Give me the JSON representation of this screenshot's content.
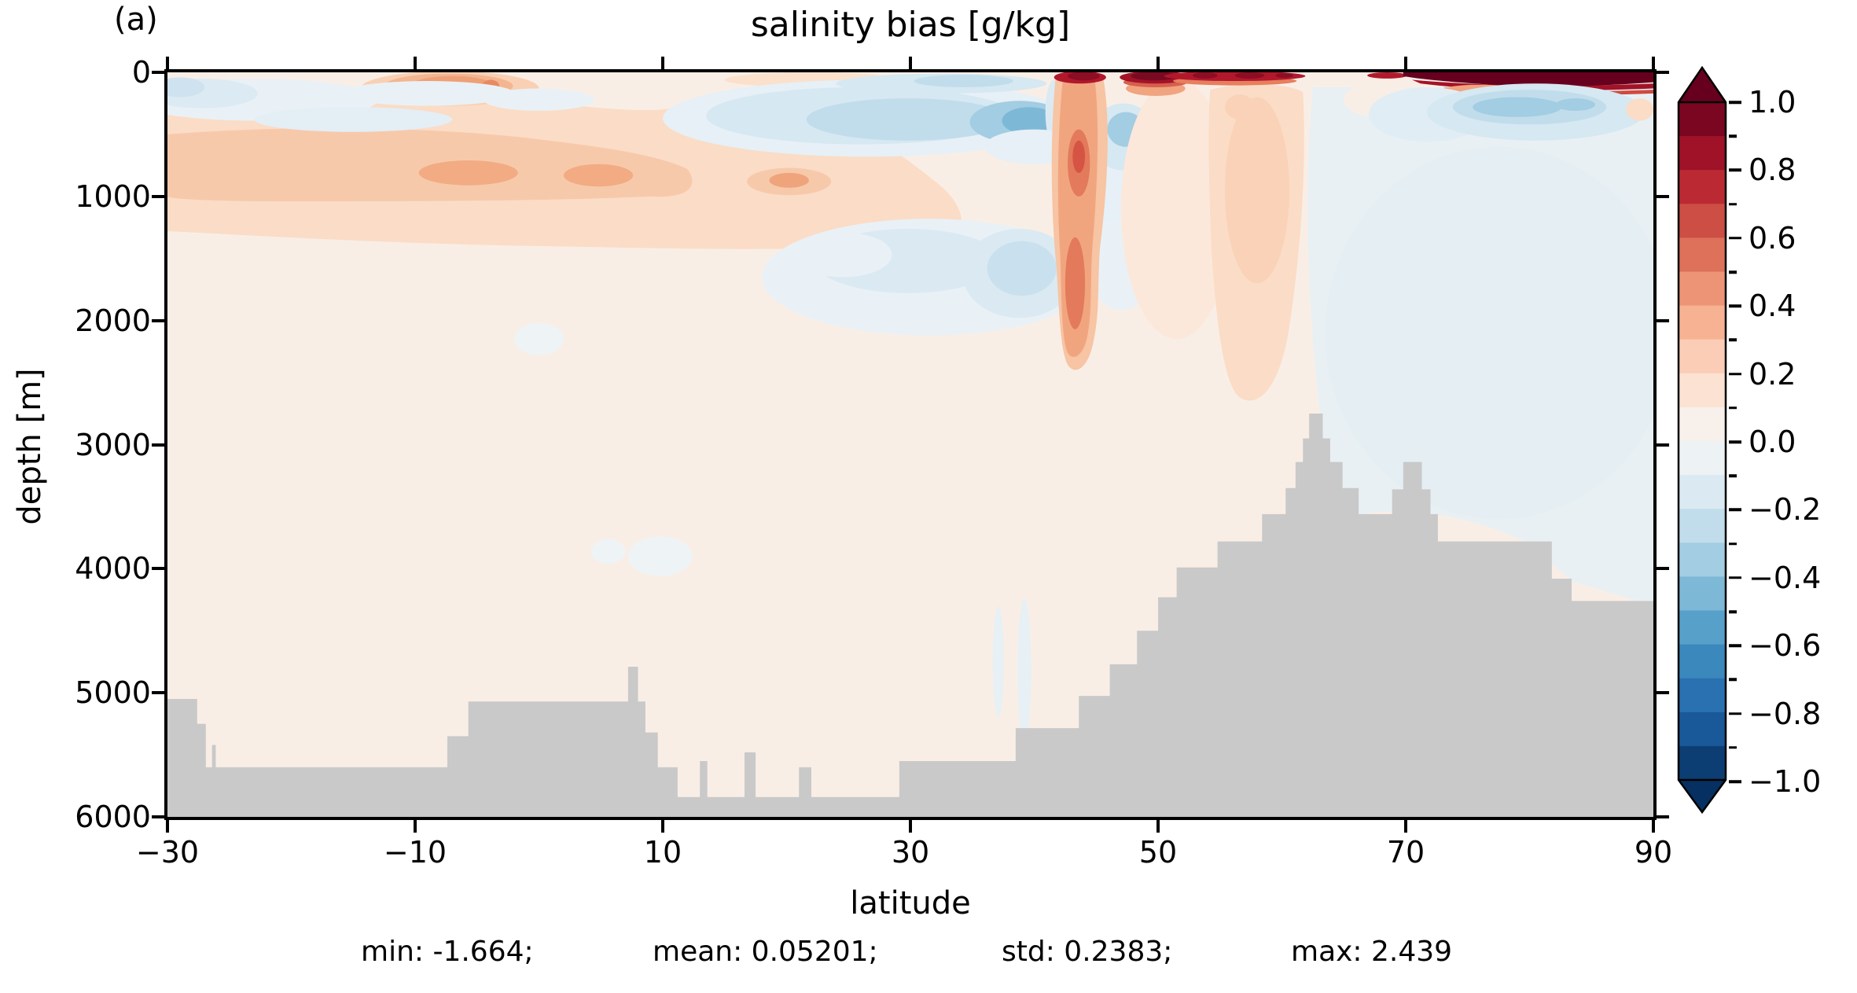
{
  "panel_label": "(a)",
  "title": "salinity bias [g/kg]",
  "axes": {
    "xlabel": "latitude",
    "ylabel": "depth [m]",
    "x_ticks": [
      "−30",
      "−10",
      "10",
      "30",
      "50",
      "70",
      "90"
    ],
    "y_ticks": [
      "0",
      "1000",
      "2000",
      "3000",
      "4000",
      "5000",
      "6000"
    ]
  },
  "stats": {
    "min": "min: -1.664;",
    "mean": "mean: 0.05201;",
    "std": "std: 0.2383;",
    "max": "max: 2.439"
  },
  "colorbar": {
    "labels": [
      "1.0",
      "0.8",
      "0.6",
      "0.4",
      "0.2",
      "0.0",
      "−0.2",
      "−0.4",
      "−0.6",
      "−0.8",
      "−1.0"
    ],
    "segment_colors_top_to_bottom": [
      "#7a0622",
      "#9f1228",
      "#bb2a33",
      "#cd4e44",
      "#dd715a",
      "#ec9475",
      "#f6b293",
      "#fbcdb6",
      "#fbe2d3",
      "#f8f0eb",
      "#edf2f5",
      "#dbeaf2",
      "#c1ddeb",
      "#a2cde2",
      "#7eb8d7",
      "#57a0ca",
      "#3b88bd",
      "#2a71b2",
      "#1a5999",
      "#0c3e74"
    ],
    "over_color": "#67001f",
    "under_color": "#053061"
  },
  "chart_data": {
    "type": "heatmap",
    "subtype": "filled_contour_latitude_depth_section",
    "title": "salinity bias [g/kg]",
    "xlabel": "latitude",
    "ylabel": "depth [m]",
    "xlim": [
      -30,
      90
    ],
    "ylim": [
      6000,
      0
    ],
    "y_axis_inverted": true,
    "x_tick_values": [
      -30,
      -10,
      10,
      30,
      50,
      70,
      90
    ],
    "y_tick_values": [
      0,
      1000,
      2000,
      3000,
      4000,
      5000,
      6000
    ],
    "contour_levels": [
      -1.0,
      -0.9,
      -0.8,
      -0.7,
      -0.6,
      -0.5,
      -0.4,
      -0.3,
      -0.2,
      -0.1,
      0.0,
      0.1,
      0.2,
      0.3,
      0.4,
      0.5,
      0.6,
      0.7,
      0.8,
      0.9,
      1.0
    ],
    "colormap": "RdBu_r diverging, discrete 0.1-wide bins, triangular extend arrows at both ends",
    "colorbar_range": [
      -1.0,
      1.0
    ],
    "stats": {
      "min": -1.664,
      "mean": 0.05201,
      "std": 0.2383,
      "max": 2.439
    },
    "land_mask_color": "#c9c9c9",
    "features": [
      {
        "region": "surface cap 55N-90N",
        "depth_m": [
          0,
          120
        ],
        "bias_g_kg": "+1.0 to +2.44 (saturated dark red, max of field)"
      },
      {
        "region": "narrow salty plume ~43N (Mediterranean outflow)",
        "depth_m": [
          0,
          2400
        ],
        "bias_g_kg": "+0.3 to +0.6, dark red at surface"
      },
      {
        "region": "upper-ocean fresh anomaly 15N-42N",
        "depth_m": [
          100,
          700
        ],
        "bias_g_kg": "-0.2 to -0.45"
      },
      {
        "region": "salty band 30S-10N",
        "depth_m": [
          400,
          1100
        ],
        "bias_g_kg": "+0.2 to +0.35"
      },
      {
        "region": "surface salty blob 12S-2S",
        "depth_m": [
          0,
          250
        ],
        "bias_g_kg": "+0.3 to +0.45"
      },
      {
        "region": "subpolar fresh patch 74N-88N",
        "depth_m": [
          150,
          550
        ],
        "bias_g_kg": "-0.2 to -0.35"
      },
      {
        "region": "salty column 52N-62N",
        "depth_m": [
          150,
          2700
        ],
        "bias_g_kg": "+0.1 to +0.2"
      },
      {
        "region": "mid-depth fresh pockets 25N-42N",
        "depth_m": [
          1100,
          2100
        ],
        "bias_g_kg": "-0.1 to -0.2"
      },
      {
        "region": "deep basins south of 60N",
        "depth_m": [
          2500,
          6000
        ],
        "bias_g_kg": "0 to +0.1"
      },
      {
        "region": "deep Arctic basin 63N-90N",
        "depth_m": [
          300,
          4200
        ],
        "bias_g_kg": "-0.1 to 0"
      }
    ],
    "bathymetry_profile_lat_depth": [
      [
        -30,
        5050
      ],
      [
        -27.6,
        5050
      ],
      [
        -27.6,
        5250
      ],
      [
        -26.9,
        5250
      ],
      [
        -26.9,
        5600
      ],
      [
        -26.4,
        5600
      ],
      [
        -26.4,
        5420
      ],
      [
        -26.1,
        5420
      ],
      [
        -26.1,
        5600
      ],
      [
        -7.4,
        5600
      ],
      [
        -7.4,
        5350
      ],
      [
        -5.7,
        5350
      ],
      [
        -5.7,
        5070
      ],
      [
        7.2,
        5070
      ],
      [
        7.2,
        4790
      ],
      [
        8.0,
        4790
      ],
      [
        8.0,
        5070
      ],
      [
        8.6,
        5070
      ],
      [
        8.6,
        5320
      ],
      [
        9.6,
        5320
      ],
      [
        9.6,
        5600
      ],
      [
        11.2,
        5600
      ],
      [
        11.2,
        5840
      ],
      [
        13.0,
        5840
      ],
      [
        13.0,
        5550
      ],
      [
        13.6,
        5550
      ],
      [
        13.6,
        5840
      ],
      [
        16.6,
        5840
      ],
      [
        16.6,
        5480
      ],
      [
        17.5,
        5480
      ],
      [
        17.5,
        5840
      ],
      [
        21.0,
        5840
      ],
      [
        21.0,
        5600
      ],
      [
        22.0,
        5600
      ],
      [
        22.0,
        5840
      ],
      [
        29.1,
        5840
      ],
      [
        29.1,
        5550
      ],
      [
        38.5,
        5550
      ],
      [
        38.5,
        5285
      ],
      [
        43.6,
        5285
      ],
      [
        43.6,
        5025
      ],
      [
        46.1,
        5025
      ],
      [
        46.1,
        4770
      ],
      [
        48.3,
        4770
      ],
      [
        48.3,
        4500
      ],
      [
        50.0,
        4500
      ],
      [
        50.0,
        4230
      ],
      [
        51.5,
        4230
      ],
      [
        51.5,
        3990
      ],
      [
        54.8,
        3990
      ],
      [
        54.8,
        3780
      ],
      [
        58.4,
        3780
      ],
      [
        58.4,
        3560
      ],
      [
        60.3,
        3560
      ],
      [
        60.3,
        3350
      ],
      [
        61.1,
        3350
      ],
      [
        61.1,
        3140
      ],
      [
        61.7,
        3140
      ],
      [
        61.7,
        2950
      ],
      [
        62.2,
        2950
      ],
      [
        62.2,
        2750
      ],
      [
        63.3,
        2750
      ],
      [
        63.3,
        2950
      ],
      [
        63.9,
        2950
      ],
      [
        63.9,
        3140
      ],
      [
        64.9,
        3140
      ],
      [
        64.9,
        3350
      ],
      [
        66.2,
        3350
      ],
      [
        66.2,
        3560
      ],
      [
        68.9,
        3560
      ],
      [
        68.9,
        3360
      ],
      [
        69.8,
        3360
      ],
      [
        69.8,
        3140
      ],
      [
        71.3,
        3140
      ],
      [
        71.3,
        3360
      ],
      [
        72.0,
        3360
      ],
      [
        72.0,
        3560
      ],
      [
        72.6,
        3560
      ],
      [
        72.6,
        3780
      ],
      [
        81.8,
        3780
      ],
      [
        81.8,
        4080
      ],
      [
        83.4,
        4080
      ],
      [
        83.4,
        4260
      ],
      [
        90,
        4260
      ]
    ]
  }
}
